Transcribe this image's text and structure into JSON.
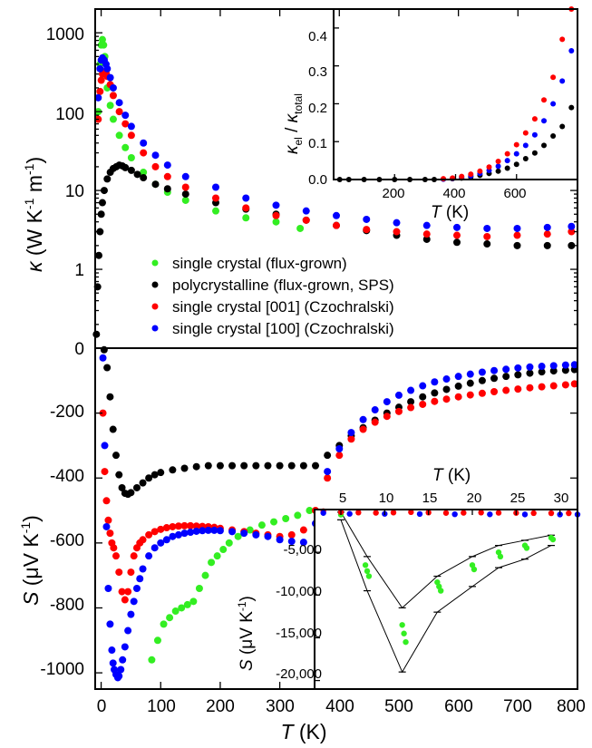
{
  "colors": {
    "green": "#33ee22",
    "black": "#000000",
    "red": "#ff0000",
    "blue": "#0000ff"
  },
  "legend": [
    {
      "label": "single crystal (flux-grown)",
      "color": "#33ee22"
    },
    {
      "label": "polycrystalline (flux-grown, SPS)",
      "color": "#000000"
    },
    {
      "label": "single crystal [001] (Czochralski)",
      "color": "#ff0000"
    },
    {
      "label": "single crystal [100] (Czochralski)",
      "color": "#0000ff"
    }
  ],
  "chart_data": [
    {
      "type": "scatter",
      "panel": "top",
      "xlabel_sym": "T",
      "xlabel_unit": " (K)",
      "ylabel_sym": "κ",
      "ylabel_unit": " (W K",
      "ylabel_m": " m",
      "ylabel_close": ")",
      "ylabel_exp": "-1",
      "xlim": [
        0,
        800
      ],
      "ylim": [
        0.1,
        2000
      ],
      "yscale": "log",
      "yticks": [
        1,
        10,
        100,
        1000
      ],
      "yticklabels": [
        "1",
        "10",
        "100",
        "1000"
      ],
      "ybottom_label": "0",
      "grid": false,
      "legend_position": "center",
      "series": [
        {
          "key": "green",
          "x": [
            5,
            8,
            10,
            12,
            14,
            16,
            18,
            20,
            25,
            30,
            40,
            50,
            60,
            80,
            100,
            120,
            150,
            200,
            250,
            300,
            340
          ],
          "y": [
            100,
            400,
            700,
            820,
            700,
            500,
            300,
            200,
            120,
            80,
            50,
            35,
            26,
            17,
            12,
            9.5,
            7.5,
            5.5,
            4.5,
            4,
            3.3
          ]
        },
        {
          "key": "black",
          "x": [
            2,
            4,
            6,
            8,
            10,
            12,
            15,
            20,
            25,
            30,
            35,
            40,
            45,
            50,
            60,
            70,
            80,
            100,
            120,
            150,
            200,
            250,
            300,
            350,
            400,
            450,
            500,
            550,
            600,
            650,
            700,
            750,
            790
          ],
          "y": [
            0.15,
            0.6,
            1.5,
            3,
            5,
            7,
            10,
            14,
            17,
            19,
            20,
            21,
            20.5,
            19.5,
            18,
            16,
            14.5,
            12,
            10.5,
            9,
            7,
            5.8,
            5,
            4.2,
            3.6,
            3.1,
            2.7,
            2.4,
            2.2,
            2.1,
            2,
            2,
            2
          ]
        },
        {
          "key": "red",
          "x": [
            5,
            8,
            10,
            12,
            15,
            18,
            20,
            25,
            30,
            40,
            50,
            60,
            80,
            100,
            120,
            150,
            200,
            250,
            300,
            350,
            400,
            450,
            500,
            550,
            600,
            650,
            700,
            750,
            790
          ],
          "y": [
            80,
            180,
            250,
            300,
            320,
            310,
            280,
            220,
            160,
            100,
            70,
            50,
            30,
            20,
            15,
            11,
            8,
            6,
            4.8,
            4.2,
            3.6,
            3.2,
            3,
            2.8,
            2.7,
            2.6,
            2.7,
            2.8,
            3
          ]
        },
        {
          "key": "blue",
          "x": [
            5,
            8,
            10,
            12,
            15,
            18,
            20,
            25,
            30,
            40,
            50,
            60,
            80,
            100,
            120,
            150,
            200,
            250,
            300,
            350,
            400,
            450,
            500,
            550,
            600,
            650,
            700,
            750,
            790
          ],
          "y": [
            150,
            350,
            450,
            480,
            450,
            400,
            350,
            270,
            200,
            130,
            90,
            65,
            40,
            28,
            21,
            15,
            11,
            8,
            6.5,
            5.5,
            4.8,
            4.3,
            3.9,
            3.6,
            3.4,
            3.3,
            3.3,
            3.4,
            3.5
          ]
        }
      ]
    },
    {
      "type": "scatter",
      "panel": "top-inset",
      "xlabel_sym": "T",
      "xlabel_unit": " (K)",
      "ylabel_k1": "κ",
      "ylabel_s1": "el",
      "ylabel_mid": " / ",
      "ylabel_k2": "κ",
      "ylabel_s2": "total",
      "xlim": [
        0,
        800
      ],
      "ylim": [
        0,
        0.45
      ],
      "xticks": [
        200,
        400,
        600
      ],
      "xticklabels": [
        "200",
        "400",
        "600"
      ],
      "yticks": [
        0.0,
        0.1,
        0.2,
        0.3,
        0.4
      ],
      "yticklabels": [
        "0.0",
        "0.1",
        "0.2",
        "0.3",
        "0.4"
      ],
      "series": [
        {
          "key": "black",
          "x": [
            20,
            50,
            100,
            150,
            200,
            250,
            300,
            330,
            360,
            390,
            420,
            450,
            480,
            510,
            540,
            570,
            600,
            630,
            660,
            690,
            720,
            750,
            780
          ],
          "y": [
            0,
            0,
            0,
            0,
            0,
            0,
            0,
            0,
            0.001,
            0.002,
            0.004,
            0.007,
            0.011,
            0.016,
            0.022,
            0.03,
            0.04,
            0.055,
            0.07,
            0.09,
            0.115,
            0.14,
            0.19
          ]
        },
        {
          "key": "blue",
          "x": [
            360,
            390,
            420,
            450,
            480,
            510,
            540,
            570,
            600,
            630,
            660,
            690,
            720,
            750,
            780
          ],
          "y": [
            0.001,
            0.003,
            0.006,
            0.01,
            0.016,
            0.024,
            0.035,
            0.05,
            0.068,
            0.09,
            0.118,
            0.155,
            0.2,
            0.26,
            0.34
          ]
        },
        {
          "key": "red",
          "x": [
            360,
            390,
            420,
            450,
            480,
            510,
            540,
            570,
            600,
            630,
            660,
            690,
            720,
            750,
            780
          ],
          "y": [
            0.002,
            0.004,
            0.008,
            0.014,
            0.022,
            0.033,
            0.048,
            0.068,
            0.092,
            0.123,
            0.16,
            0.21,
            0.27,
            0.37,
            0.45
          ]
        }
      ]
    },
    {
      "type": "scatter",
      "panel": "bottom",
      "xlabel_sym": "T",
      "xlabel_unit": " (K)",
      "ylabel_sym": "S",
      "ylabel_unit": " (μV K",
      "ylabel_close": ")",
      "ylabel_exp": "-1",
      "xlim": [
        -10,
        800
      ],
      "ylim": [
        -1050,
        0
      ],
      "xticks": [
        0,
        100,
        200,
        300,
        400,
        500,
        600,
        700,
        800
      ],
      "xticklabels": [
        "0",
        "100",
        "200",
        "300",
        "400",
        "500",
        "600",
        "700",
        "800"
      ],
      "yticks": [
        0,
        -200,
        -400,
        -600,
        -800,
        -1000
      ],
      "yticklabels": [
        "0",
        "-200",
        "-400",
        "-600",
        "-800",
        "-1000"
      ],
      "series": [
        {
          "key": "green",
          "x": [
            85,
            95,
            105,
            115,
            125,
            135,
            145,
            155,
            165,
            175,
            185,
            195,
            205,
            215,
            230,
            250,
            270,
            290,
            310,
            330,
            350
          ],
          "y": [
            -960,
            -900,
            -850,
            -830,
            -810,
            -800,
            -790,
            -780,
            -740,
            -700,
            -660,
            -640,
            -620,
            -600,
            -580,
            -560,
            -545,
            -535,
            -525,
            -515,
            -500
          ]
        },
        {
          "key": "black",
          "x": [
            5,
            10,
            15,
            20,
            25,
            30,
            35,
            40,
            45,
            50,
            60,
            70,
            80,
            90,
            100,
            120,
            140,
            160,
            180,
            200,
            220,
            240,
            260,
            280,
            300,
            320,
            340,
            360,
            380,
            400,
            420,
            440,
            460,
            480,
            500,
            520,
            540,
            560,
            580,
            600,
            620,
            640,
            660,
            680,
            700,
            720,
            740,
            760,
            780,
            795
          ],
          "y": [
            -5,
            -60,
            -150,
            -250,
            -330,
            -390,
            -430,
            -447,
            -450,
            -445,
            -430,
            -415,
            -400,
            -390,
            -383,
            -375,
            -370,
            -365,
            -362,
            -362,
            -362,
            -362,
            -362,
            -362,
            -362,
            -362,
            -362,
            -362,
            -330,
            -300,
            -270,
            -245,
            -222,
            -200,
            -182,
            -165,
            -150,
            -138,
            -127,
            -117,
            -108,
            -100,
            -93,
            -87,
            -82,
            -77,
            -73,
            -70,
            -68,
            -66
          ]
        },
        {
          "key": "red",
          "x": [
            3,
            6,
            9,
            12,
            15,
            18,
            21,
            25,
            30,
            35,
            40,
            45,
            50,
            55,
            60,
            65,
            70,
            80,
            90,
            100,
            110,
            120,
            130,
            140,
            150,
            160,
            170,
            180,
            190,
            200,
            220,
            240,
            260,
            280,
            300,
            320,
            340,
            360,
            380,
            400,
            420,
            440,
            460,
            480,
            500,
            520,
            540,
            560,
            580,
            600,
            620,
            640,
            660,
            680,
            700,
            720,
            740,
            760,
            780,
            795
          ],
          "y": [
            -200,
            -380,
            -470,
            -530,
            -570,
            -600,
            -615,
            -640,
            -690,
            -750,
            -775,
            -750,
            -690,
            -640,
            -615,
            -600,
            -590,
            -575,
            -565,
            -558,
            -553,
            -550,
            -548,
            -547,
            -547,
            -548,
            -549,
            -550,
            -552,
            -555,
            -560,
            -565,
            -570,
            -575,
            -580,
            -575,
            -560,
            -500,
            -400,
            -330,
            -280,
            -250,
            -228,
            -210,
            -195,
            -183,
            -173,
            -164,
            -157,
            -150,
            -144,
            -139,
            -134,
            -130,
            -126,
            -122,
            -119,
            -116,
            -113,
            -110
          ]
        },
        {
          "key": "blue",
          "x": [
            3,
            6,
            9,
            12,
            15,
            18,
            20,
            22,
            25,
            28,
            30,
            33,
            36,
            40,
            45,
            50,
            55,
            60,
            65,
            70,
            80,
            90,
            100,
            110,
            120,
            130,
            140,
            150,
            160,
            170,
            180,
            190,
            200,
            220,
            240,
            260,
            280,
            300,
            320,
            340,
            360,
            380,
            400,
            420,
            440,
            460,
            480,
            500,
            520,
            540,
            560,
            580,
            600,
            620,
            640,
            660,
            680,
            700,
            720,
            740,
            760,
            780,
            795
          ],
          "y": [
            -30,
            -300,
            -550,
            -740,
            -850,
            -930,
            -970,
            -990,
            -1005,
            -1015,
            -1010,
            -990,
            -960,
            -920,
            -870,
            -820,
            -780,
            -740,
            -710,
            -680,
            -640,
            -615,
            -600,
            -590,
            -580,
            -575,
            -570,
            -567,
            -564,
            -562,
            -561,
            -561,
            -562,
            -565,
            -570,
            -575,
            -580,
            -590,
            -595,
            -598,
            -540,
            -380,
            -310,
            -260,
            -220,
            -190,
            -165,
            -145,
            -130,
            -116,
            -104,
            -95,
            -87,
            -80,
            -74,
            -69,
            -65,
            -61,
            -58,
            -56,
            -54,
            -52,
            -51
          ]
        }
      ]
    },
    {
      "type": "scatter",
      "panel": "bottom-inset",
      "xlabel_sym": "T",
      "xlabel_unit": " (K)",
      "ylabel_sym": "S",
      "ylabel_unit": " (μV K",
      "ylabel_close": ")",
      "ylabel_exp": "-1",
      "xlim": [
        2,
        32
      ],
      "ylim": [
        -21000,
        0
      ],
      "xticks": [
        5,
        10,
        15,
        20,
        25,
        30
      ],
      "xticklabels": [
        "5",
        "10",
        "15",
        "20",
        "25",
        "30"
      ],
      "yticks": [
        -5000,
        -10000,
        -15000,
        -20000
      ],
      "yticklabels": [
        "-5,000",
        "-10,000",
        "-15,000",
        "-20,000"
      ],
      "series": [
        {
          "key": "green",
          "x": [
            5,
            7.8,
            8,
            8.2,
            12,
            12.2,
            12.4,
            16,
            16.2,
            16.4,
            20,
            20.2,
            23,
            23.2,
            26,
            26.2,
            29,
            29.2
          ],
          "y": [
            -600,
            -6500,
            -7200,
            -7800,
            -13500,
            -14500,
            -15500,
            -8500,
            -9000,
            -9500,
            -6500,
            -7000,
            -5000,
            -5500,
            -4200,
            -4500,
            -3300,
            -3500
          ]
        },
        {
          "key": "red",
          "x": [
            3,
            5,
            7,
            9,
            11,
            13,
            15,
            17,
            19,
            21,
            23,
            25,
            27,
            29,
            31
          ],
          "y": [
            -200,
            -300,
            -350,
            -380,
            -350,
            -300,
            -350,
            -400,
            -380,
            -350,
            -380,
            -400,
            -420,
            -430,
            -430
          ]
        },
        {
          "key": "blue",
          "x": [
            3,
            6,
            10,
            14,
            18,
            22,
            26,
            30,
            32
          ],
          "y": [
            -400,
            -500,
            -500,
            -520,
            -550,
            -560,
            -570,
            -580,
            -580
          ]
        }
      ],
      "errorbars": {
        "x": [
          5,
          8,
          12,
          16,
          20,
          23,
          26,
          29
        ],
        "lower": [
          -1200,
          -9500,
          -19000,
          -12000,
          -9000,
          -6800,
          -5800,
          -4200
        ],
        "upper": [
          -300,
          -5500,
          -11500,
          -7800,
          -5500,
          -4200,
          -3600,
          -3000
        ]
      }
    }
  ]
}
